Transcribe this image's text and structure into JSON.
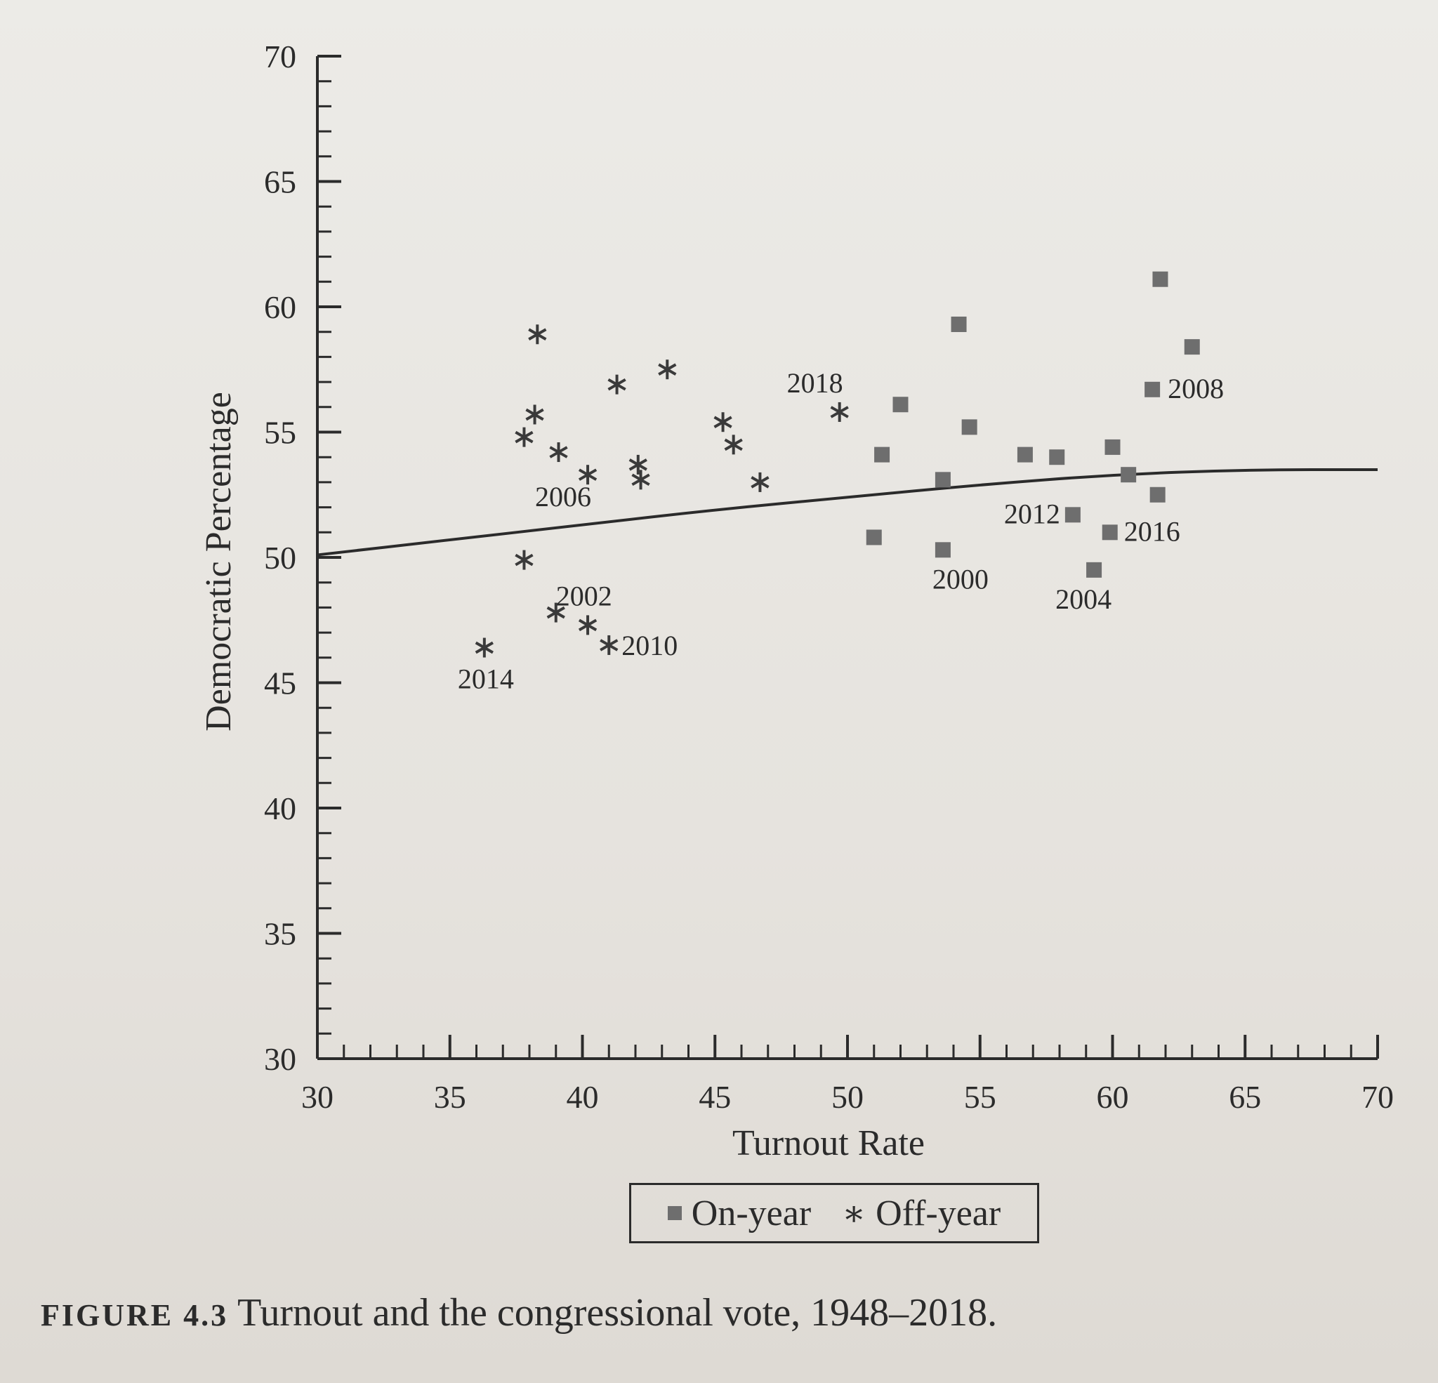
{
  "chart_data": {
    "type": "scatter",
    "xlabel": "Turnout Rate",
    "ylabel": "Democratic Percentage",
    "xlim": [
      30,
      70
    ],
    "ylim": [
      30,
      70
    ],
    "x_ticks": [
      "30",
      "35",
      "40",
      "45",
      "50",
      "55",
      "60",
      "65",
      "70"
    ],
    "y_ticks": [
      "30",
      "35",
      "40",
      "45",
      "50",
      "55",
      "60",
      "65",
      "70"
    ],
    "series": [
      {
        "name": "On-year",
        "marker": "square",
        "color": "#6e6e6e",
        "points": [
          {
            "x": 51.0,
            "y": 50.8
          },
          {
            "x": 51.3,
            "y": 54.1
          },
          {
            "x": 52.0,
            "y": 56.1
          },
          {
            "x": 53.6,
            "y": 53.1
          },
          {
            "x": 54.2,
            "y": 59.3
          },
          {
            "x": 54.6,
            "y": 55.2
          },
          {
            "x": 56.7,
            "y": 54.1
          },
          {
            "x": 57.9,
            "y": 54.0
          },
          {
            "x": 60.0,
            "y": 54.4
          },
          {
            "x": 60.6,
            "y": 53.3
          },
          {
            "x": 61.7,
            "y": 52.5
          },
          {
            "x": 61.8,
            "y": 61.1
          },
          {
            "x": 63.0,
            "y": 58.4
          },
          {
            "x": 53.6,
            "y": 50.3,
            "label": "2000"
          },
          {
            "x": 59.3,
            "y": 49.5,
            "label": "2004"
          },
          {
            "x": 61.5,
            "y": 56.7,
            "label": "2008"
          },
          {
            "x": 58.5,
            "y": 51.7,
            "label": "2012"
          },
          {
            "x": 59.9,
            "y": 51.0,
            "label": "2016"
          }
        ]
      },
      {
        "name": "Off-year",
        "marker": "asterisk",
        "color": "#3a3a3a",
        "points": [
          {
            "x": 38.3,
            "y": 58.9
          },
          {
            "x": 38.2,
            "y": 55.7
          },
          {
            "x": 37.8,
            "y": 54.8
          },
          {
            "x": 39.1,
            "y": 54.2
          },
          {
            "x": 41.3,
            "y": 56.9
          },
          {
            "x": 43.2,
            "y": 57.5
          },
          {
            "x": 42.1,
            "y": 53.7
          },
          {
            "x": 42.2,
            "y": 53.1
          },
          {
            "x": 45.3,
            "y": 55.4
          },
          {
            "x": 45.7,
            "y": 54.5
          },
          {
            "x": 46.7,
            "y": 53.0
          },
          {
            "x": 37.8,
            "y": 49.9
          },
          {
            "x": 40.2,
            "y": 53.3,
            "label": "2006"
          },
          {
            "x": 39.0,
            "y": 47.8,
            "label": "2002"
          },
          {
            "x": 40.2,
            "y": 47.3
          },
          {
            "x": 41.0,
            "y": 46.5,
            "label": "2010"
          },
          {
            "x": 36.3,
            "y": 46.4,
            "label": "2014"
          },
          {
            "x": 49.7,
            "y": 55.8,
            "label": "2018"
          }
        ]
      }
    ],
    "fit_line": {
      "type": "curve",
      "color": "#2b2b2b",
      "points": [
        [
          30,
          50.1
        ],
        [
          35,
          50.7
        ],
        [
          40,
          51.3
        ],
        [
          45,
          51.9
        ],
        [
          50,
          52.4
        ],
        [
          55,
          52.9
        ],
        [
          60,
          53.3
        ],
        [
          65,
          53.5
        ],
        [
          70,
          53.5
        ]
      ]
    },
    "legend": {
      "placement": "bottom-center",
      "items": [
        "On-year",
        "Off-year"
      ]
    },
    "grid": false
  },
  "legend": {
    "on_year_label": "On-year",
    "off_year_label": "Off-year",
    "off_year_symbol": "∗"
  },
  "caption": {
    "label": "FIGURE 4.3",
    "text": "Turnout and the congressional vote, 1948–2018."
  }
}
